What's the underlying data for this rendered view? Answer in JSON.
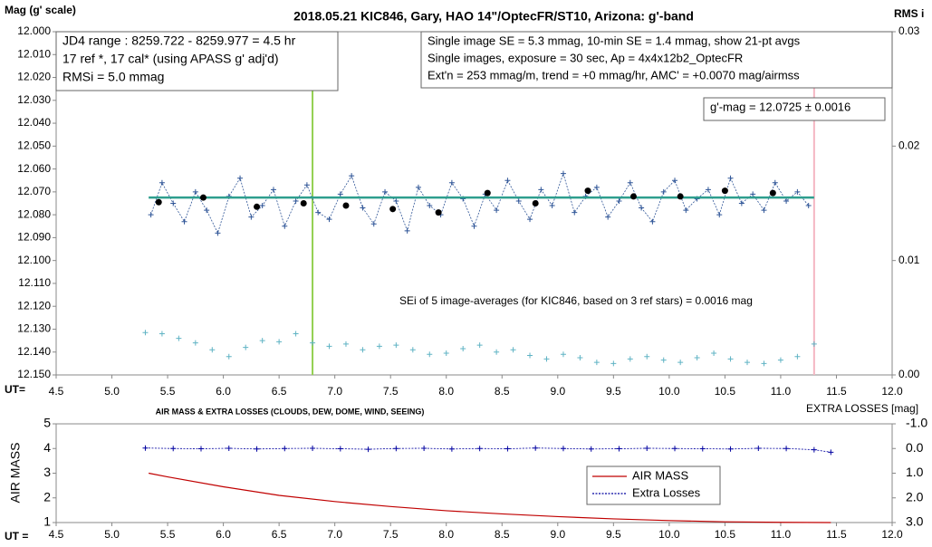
{
  "chart_data": [
    {
      "type": "scatter",
      "title": "2018.05.21  KIC846,  Gary, HAO 14\"/OptecFR/ST10,  Arizona:  g'-band",
      "y_label": "Mag (g' scale)",
      "y2_label": "RMS i",
      "x_label": "UT=",
      "xlim": [
        4.5,
        12.0
      ],
      "xticks": [
        4.5,
        {
          "value": 5,
          "label": "5.0"
        },
        5.5,
        {
          "value": 6,
          "label": "6.0"
        },
        6.5,
        {
          "value": 7,
          "label": "7.0"
        },
        7.5,
        {
          "value": 8,
          "label": "8.0"
        },
        8.5,
        {
          "value": 9,
          "label": "9.0"
        },
        9.5,
        {
          "value": 10,
          "label": "10.0"
        },
        10.5,
        {
          "value": 11,
          "label": "11.0"
        },
        11.5,
        {
          "value": 12,
          "label": "12.0"
        }
      ],
      "ylim": [
        12.0,
        12.15
      ],
      "y_inverted": true,
      "yticks": [
        {
          "value": 12.0,
          "label": "12.000"
        },
        {
          "value": 12.01,
          "label": "12.010"
        },
        {
          "value": 12.02,
          "label": "12.020"
        },
        {
          "value": 12.03,
          "label": "12.030"
        },
        {
          "value": 12.04,
          "label": "12.040"
        },
        {
          "value": 12.05,
          "label": "12.050"
        },
        {
          "value": 12.06,
          "label": "12.060"
        },
        {
          "value": 12.07,
          "label": "12.070"
        },
        {
          "value": 12.08,
          "label": "12.080"
        },
        {
          "value": 12.09,
          "label": "12.090"
        },
        {
          "value": 12.1,
          "label": "12.100"
        },
        {
          "value": 12.11,
          "label": "12.110"
        },
        {
          "value": 12.12,
          "label": "12.120"
        },
        {
          "value": 12.13,
          "label": "12.130"
        },
        {
          "value": 12.14,
          "label": "12.140"
        },
        {
          "value": 12.15,
          "label": "12.150"
        }
      ],
      "y2lim": [
        0,
        0.03
      ],
      "y2ticks": [
        {
          "value": 0,
          "label": "0.00"
        },
        0.01,
        0.02,
        0.03
      ],
      "text_boxes": [
        {
          "lines": [
            "JD4 range : 8259.722 - 8259.977 =  4.5  hr",
            "17 ref *, 17 cal* (using APASS g' adj'd)",
            "RMSi = 5.0 mmag"
          ]
        },
        {
          "lines": [
            "Single image SE = 5.3 mmag, 10-min SE = 1.4 mmag, show  21-pt avgs",
            "Single images, exposure = 30 sec, Ap = 4x4x12b2_OptecFR",
            "Ext'n = 253 mmag/m, trend =  +0 mmag/hr, AMC' = +0.0070 mag/airmss"
          ]
        },
        {
          "lines": [
            "g'-mag = 12.0725 ± 0.0016"
          ]
        }
      ],
      "annotation": "SEi of 5 image-averages (for KIC846, based on 3 ref stars) = 0.0016  mag",
      "vlines": [
        {
          "x": 6.8,
          "color": "#92d050"
        },
        {
          "x": 11.3,
          "color": "#f4b6c2"
        }
      ],
      "series": [
        {
          "color": "#2f5597",
          "marker": "plus",
          "line": "dotted",
          "x": [
            5.35,
            5.45,
            5.55,
            5.65,
            5.75,
            5.85,
            5.95,
            6.05,
            6.15,
            6.25,
            6.35,
            6.45,
            6.55,
            6.65,
            6.75,
            6.85,
            6.95,
            7.05,
            7.15,
            7.25,
            7.35,
            7.45,
            7.55,
            7.65,
            7.75,
            7.85,
            7.95,
            8.05,
            8.15,
            8.25,
            8.35,
            8.45,
            8.55,
            8.65,
            8.75,
            8.85,
            8.95,
            9.05,
            9.15,
            9.25,
            9.35,
            9.45,
            9.55,
            9.65,
            9.75,
            9.85,
            9.95,
            10.05,
            10.15,
            10.25,
            10.35,
            10.45,
            10.55,
            10.65,
            10.75,
            10.85,
            10.95,
            11.05,
            11.15,
            11.25
          ],
          "values": [
            12.08,
            12.066,
            12.075,
            12.083,
            12.07,
            12.078,
            12.088,
            12.072,
            12.064,
            12.081,
            12.076,
            12.069,
            12.085,
            12.074,
            12.067,
            12.079,
            12.082,
            12.071,
            12.063,
            12.077,
            12.084,
            12.07,
            12.074,
            12.087,
            12.068,
            12.076,
            12.08,
            12.066,
            12.073,
            12.085,
            12.071,
            12.078,
            12.065,
            12.074,
            12.082,
            12.069,
            12.076,
            12.062,
            12.079,
            12.072,
            12.068,
            12.081,
            12.074,
            12.066,
            12.077,
            12.083,
            12.07,
            12.065,
            12.078,
            12.073,
            12.069,
            12.08,
            12.064,
            12.075,
            12.071,
            12.078,
            12.066,
            12.074,
            12.07,
            12.076
          ]
        },
        {
          "color": "#2e9e8e",
          "line": "solid",
          "x": [
            5.33,
            11.3
          ],
          "values": [
            12.0725,
            12.0725
          ]
        },
        {
          "color": "#000000",
          "marker": "dot",
          "x": [
            5.42,
            5.82,
            6.3,
            6.72,
            7.1,
            7.52,
            7.93,
            8.37,
            8.8,
            9.27,
            9.68,
            10.1,
            10.5,
            10.93
          ],
          "values": [
            12.0745,
            12.0725,
            12.0765,
            12.075,
            12.076,
            12.0775,
            12.079,
            12.0705,
            12.075,
            12.0695,
            12.072,
            12.072,
            12.0695,
            12.0705
          ]
        },
        {
          "color": "#5fb3c4",
          "marker": "plus",
          "axis": "y2",
          "x": [
            5.3,
            5.45,
            5.6,
            5.75,
            5.9,
            6.05,
            6.2,
            6.35,
            6.5,
            6.65,
            6.8,
            6.95,
            7.1,
            7.25,
            7.4,
            7.55,
            7.7,
            7.85,
            8.0,
            8.15,
            8.3,
            8.45,
            8.6,
            8.75,
            8.9,
            9.05,
            9.2,
            9.35,
            9.5,
            9.65,
            9.8,
            9.95,
            10.1,
            10.25,
            10.4,
            10.55,
            10.7,
            10.85,
            11.0,
            11.15,
            11.3
          ],
          "values": [
            0.0037,
            0.0036,
            0.0032,
            0.0028,
            0.0022,
            0.0016,
            0.0024,
            0.003,
            0.0029,
            0.0036,
            0.0028,
            0.0025,
            0.0027,
            0.0022,
            0.0025,
            0.0026,
            0.0022,
            0.0018,
            0.0019,
            0.0023,
            0.0026,
            0.002,
            0.0022,
            0.0017,
            0.0014,
            0.0018,
            0.0015,
            0.0011,
            0.001,
            0.0014,
            0.0016,
            0.0013,
            0.0011,
            0.0015,
            0.0019,
            0.0014,
            0.0011,
            0.001,
            0.0013,
            0.0016,
            0.0027
          ]
        }
      ]
    },
    {
      "type": "line",
      "title": "AIR MASS & EXTRA LOSSES (CLOUDS, DEW, DOME, WIND, SEEING)",
      "y_label": "AIR MASS",
      "y2_label": "EXTRA LOSSES [mag]",
      "x_label": "UT =",
      "xlim": [
        4.5,
        12.0
      ],
      "xticks": [
        4.5,
        {
          "value": 5,
          "label": "5.0"
        },
        5.5,
        {
          "value": 6,
          "label": "6.0"
        },
        6.5,
        {
          "value": 7,
          "label": "7.0"
        },
        7.5,
        {
          "value": 8,
          "label": "8.0"
        },
        8.5,
        {
          "value": 9,
          "label": "9.0"
        },
        9.5,
        {
          "value": 10,
          "label": "10.0"
        },
        10.5,
        {
          "value": 11,
          "label": "11.0"
        },
        11.5,
        {
          "value": 12,
          "label": "12.0"
        }
      ],
      "ylim": [
        1,
        5
      ],
      "yticks": [
        1,
        2,
        3,
        4,
        5
      ],
      "y2lim": [
        -1,
        3
      ],
      "y2_inverted": true,
      "y2ticks": [
        {
          "value": -1,
          "label": "-1.0"
        },
        {
          "value": 0,
          "label": "0.0"
        },
        {
          "value": 1,
          "label": "1.0"
        },
        {
          "value": 2,
          "label": "2.0"
        },
        {
          "value": 3,
          "label": "3.0"
        }
      ],
      "legend": "lower right",
      "series": [
        {
          "name": "AIR MASS",
          "color": "#c00000",
          "line": "solid",
          "x": [
            5.33,
            5.5,
            6.0,
            6.5,
            7.0,
            7.5,
            8.0,
            8.5,
            9.0,
            9.5,
            10.0,
            10.5,
            11.0,
            11.45
          ],
          "values": [
            3.0,
            2.85,
            2.45,
            2.1,
            1.85,
            1.65,
            1.48,
            1.35,
            1.24,
            1.15,
            1.08,
            1.03,
            1.01,
            1.0
          ]
        },
        {
          "name": "Extra Losses",
          "color": "#0000a0",
          "line": "dotted",
          "marker": "plus",
          "axis": "y2",
          "x": [
            5.3,
            5.55,
            5.8,
            6.05,
            6.3,
            6.55,
            6.8,
            7.05,
            7.3,
            7.55,
            7.8,
            8.05,
            8.3,
            8.55,
            8.8,
            9.05,
            9.3,
            9.55,
            9.8,
            10.05,
            10.3,
            10.55,
            10.8,
            11.05,
            11.3,
            11.45
          ],
          "values": [
            -0.02,
            0.0,
            0.01,
            -0.01,
            0.02,
            0.0,
            -0.01,
            0.01,
            0.03,
            0.0,
            -0.01,
            0.02,
            0.0,
            0.01,
            -0.02,
            0.0,
            0.02,
            0.01,
            -0.01,
            0.0,
            0.01,
            0.02,
            -0.01,
            0.0,
            0.05,
            0.15
          ]
        }
      ]
    }
  ]
}
